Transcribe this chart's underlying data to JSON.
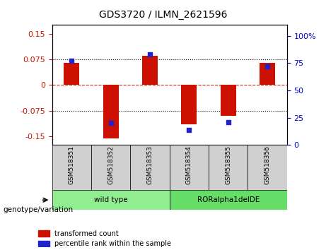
{
  "title": "GDS3720 / ILMN_2621596",
  "samples": [
    "GSM518351",
    "GSM518352",
    "GSM518353",
    "GSM518354",
    "GSM518355",
    "GSM518356"
  ],
  "transformed_counts": [
    0.065,
    -0.155,
    0.085,
    -0.115,
    -0.09,
    0.065
  ],
  "percentile_ranks": [
    77,
    20,
    83,
    14,
    21,
    72
  ],
  "ylim_left": [
    -0.175,
    0.175
  ],
  "ylim_right": [
    0,
    110
  ],
  "yticks_left": [
    -0.15,
    -0.075,
    0,
    0.075,
    0.15
  ],
  "yticks_right": [
    0,
    25,
    50,
    75,
    100
  ],
  "hlines": [
    -0.075,
    0,
    0.075
  ],
  "groups": [
    {
      "label": "wild type",
      "samples": [
        0,
        1,
        2
      ],
      "color": "#90EE90"
    },
    {
      "label": "RORalpha1delDE",
      "samples": [
        3,
        4,
        5
      ],
      "color": "#66DD66"
    }
  ],
  "bar_color": "#CC1100",
  "dot_color": "#2222CC",
  "bar_width": 0.4,
  "background_color": "#FFFFFF",
  "plot_bg_color": "#FFFFFF",
  "label_color_left": "#CC1100",
  "label_color_right": "#0000CC",
  "genotype_label": "genotype/variation",
  "legend_items": [
    {
      "label": "transformed count",
      "color": "#CC1100"
    },
    {
      "label": "percentile rank within the sample",
      "color": "#2222CC"
    }
  ],
  "grid_color": "#000000",
  "zero_line_color": "#CC2200",
  "zero_line_style": "--",
  "dotted_line_style": ":"
}
